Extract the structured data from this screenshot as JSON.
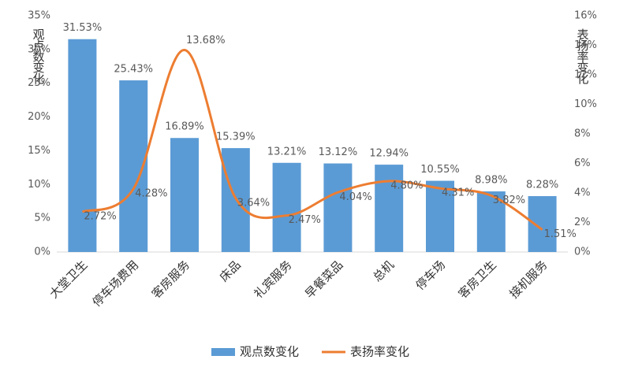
{
  "chart_data": {
    "type": "combo",
    "categories": [
      "大堂卫生",
      "停车场费用",
      "客房服务",
      "床品",
      "礼宾服务",
      "早餐菜品",
      "总机",
      "停车场",
      "客房卫生",
      "接机服务"
    ],
    "ylabel": "观点数变化",
    "y2label": "表扬率变化",
    "ylim": [
      0,
      35
    ],
    "yticks": [
      {
        "value": 0,
        "label": "0%"
      },
      {
        "value": 5,
        "label": "5%"
      },
      {
        "value": 10,
        "label": "10%"
      },
      {
        "value": 15,
        "label": "15%"
      },
      {
        "value": 20,
        "label": "20%"
      },
      {
        "value": 25,
        "label": "25%"
      },
      {
        "value": 30,
        "label": "30%"
      },
      {
        "value": 35,
        "label": "35%"
      }
    ],
    "y2lim": [
      0,
      16
    ],
    "y2ticks": [
      {
        "value": 0,
        "label": "0%"
      },
      {
        "value": 2,
        "label": "2%"
      },
      {
        "value": 4,
        "label": "4%"
      },
      {
        "value": 6,
        "label": "6%"
      },
      {
        "value": 8,
        "label": "8%"
      },
      {
        "value": 10,
        "label": "10%"
      },
      {
        "value": 12,
        "label": "12%"
      },
      {
        "value": 14,
        "label": "14%"
      },
      {
        "value": 16,
        "label": "16%"
      }
    ],
    "legend": "bottom",
    "series": [
      {
        "name": "观点数变化",
        "type": "bar",
        "color": "#5b9bd5",
        "values": [
          31.53,
          25.43,
          16.89,
          15.39,
          13.21,
          13.12,
          12.94,
          10.55,
          8.98,
          8.28
        ],
        "value_labels": [
          "31.53%",
          "25.43%",
          "16.89%",
          "15.39%",
          "13.21%",
          "13.12%",
          "12.94%",
          "10.55%",
          "8.98%",
          "8.28%"
        ]
      },
      {
        "name": "表扬率变化",
        "type": "line",
        "axis": "y2",
        "color": "#ed7d31",
        "smooth": true,
        "values": [
          2.72,
          4.28,
          13.68,
          3.64,
          2.47,
          4.04,
          4.8,
          4.31,
          3.82,
          1.51
        ],
        "value_labels": [
          "2.72%",
          "4.28%",
          "13.68%",
          "3.64%",
          "2.47%",
          "4.04%",
          "4.80%",
          "4.31%",
          "3.82%",
          "1.51%"
        ]
      }
    ]
  }
}
